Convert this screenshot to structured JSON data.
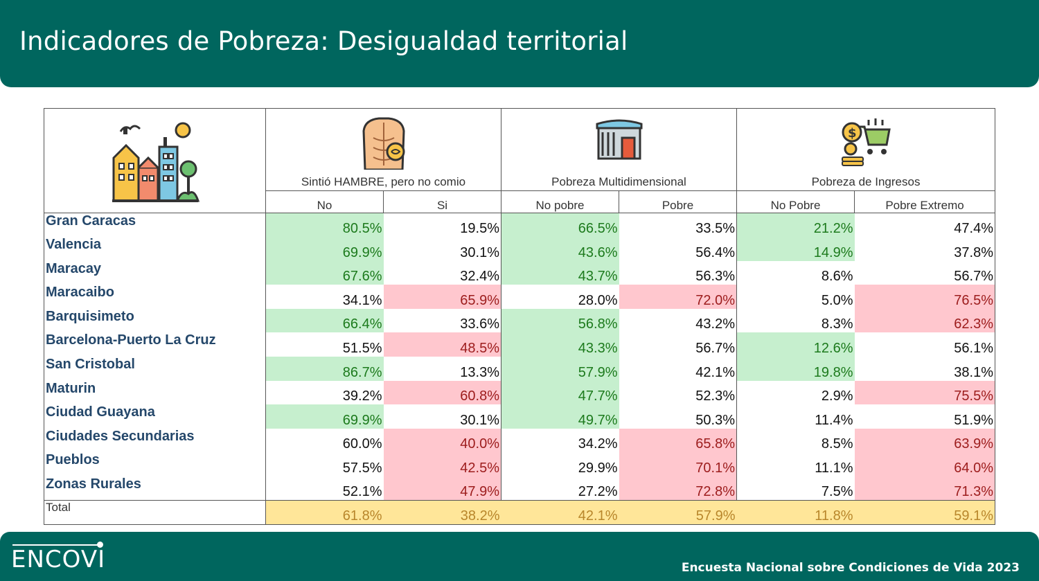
{
  "title": "Indicadores de Pobreza: Desigualdad territorial",
  "footer": {
    "brand": "ENCOVI",
    "survey": "Encuesta Nacional sobre Condiciones de Vida 2023"
  },
  "groups": [
    {
      "label": "Sintió HAMBRE, pero no comio",
      "icon": "hungry-torso-icon",
      "sub": [
        "No",
        "Si"
      ]
    },
    {
      "label": "Pobreza Multidimensional",
      "icon": "house-poverty-icon",
      "sub": [
        "No pobre",
        "Pobre"
      ]
    },
    {
      "label": "Pobreza de Ingresos",
      "icon": "money-cart-icon",
      "sub": [
        "No Pobre",
        "Pobre Extremo"
      ]
    }
  ],
  "colors": {
    "green_bg": "#c6efce",
    "red_bg": "#ffc7ce",
    "total_bg": "#ffe699",
    "header": "#00665e"
  },
  "rows": [
    {
      "label": "Gran Caracas",
      "values": [
        "80.5%",
        "19.5%",
        "66.5%",
        "33.5%",
        "21.2%",
        "47.4%"
      ],
      "hl": [
        "g",
        "",
        "g",
        "",
        "g",
        ""
      ]
    },
    {
      "label": "Valencia",
      "values": [
        "69.9%",
        "30.1%",
        "43.6%",
        "56.4%",
        "14.9%",
        "37.8%"
      ],
      "hl": [
        "g",
        "",
        "g",
        "",
        "g",
        ""
      ]
    },
    {
      "label": "Maracay",
      "values": [
        "67.6%",
        "32.4%",
        "43.7%",
        "56.3%",
        "8.6%",
        "56.7%"
      ],
      "hl": [
        "g",
        "",
        "g",
        "",
        "",
        ""
      ]
    },
    {
      "label": "Maracaibo",
      "values": [
        "34.1%",
        "65.9%",
        "28.0%",
        "72.0%",
        "5.0%",
        "76.5%"
      ],
      "hl": [
        "",
        "r",
        "",
        "r",
        "",
        "r"
      ]
    },
    {
      "label": "Barquisimeto",
      "values": [
        "66.4%",
        "33.6%",
        "56.8%",
        "43.2%",
        "8.3%",
        "62.3%"
      ],
      "hl": [
        "g",
        "",
        "g",
        "",
        "",
        "r"
      ]
    },
    {
      "label": "Barcelona-Puerto La Cruz",
      "values": [
        "51.5%",
        "48.5%",
        "43.3%",
        "56.7%",
        "12.6%",
        "56.1%"
      ],
      "hl": [
        "",
        "r",
        "g",
        "",
        "g",
        ""
      ]
    },
    {
      "label": "San Cristobal",
      "values": [
        "86.7%",
        "13.3%",
        "57.9%",
        "42.1%",
        "19.8%",
        "38.1%"
      ],
      "hl": [
        "g",
        "",
        "g",
        "",
        "g",
        ""
      ]
    },
    {
      "label": "Maturin",
      "values": [
        "39.2%",
        "60.8%",
        "47.7%",
        "52.3%",
        "2.9%",
        "75.5%"
      ],
      "hl": [
        "",
        "r",
        "g",
        "",
        "",
        "r"
      ]
    },
    {
      "label": "Ciudad Guayana",
      "values": [
        "69.9%",
        "30.1%",
        "49.7%",
        "50.3%",
        "11.4%",
        "51.9%"
      ],
      "hl": [
        "g",
        "",
        "g",
        "",
        "",
        ""
      ]
    },
    {
      "label": "Ciudades Secundarias",
      "values": [
        "60.0%",
        "40.0%",
        "34.2%",
        "65.8%",
        "8.5%",
        "63.9%"
      ],
      "hl": [
        "",
        "r",
        "",
        "r",
        "",
        "r"
      ]
    },
    {
      "label": "Pueblos",
      "values": [
        "57.5%",
        "42.5%",
        "29.9%",
        "70.1%",
        "11.1%",
        "64.0%"
      ],
      "hl": [
        "",
        "r",
        "",
        "r",
        "",
        "r"
      ]
    },
    {
      "label": "Zonas Rurales",
      "values": [
        "52.1%",
        "47.9%",
        "27.2%",
        "72.8%",
        "7.5%",
        "71.3%"
      ],
      "hl": [
        "",
        "r",
        "",
        "r",
        "",
        "r"
      ]
    }
  ],
  "total": {
    "label": "Total",
    "values": [
      "61.8%",
      "38.2%",
      "42.1%",
      "57.9%",
      "11.8%",
      "59.1%"
    ]
  }
}
